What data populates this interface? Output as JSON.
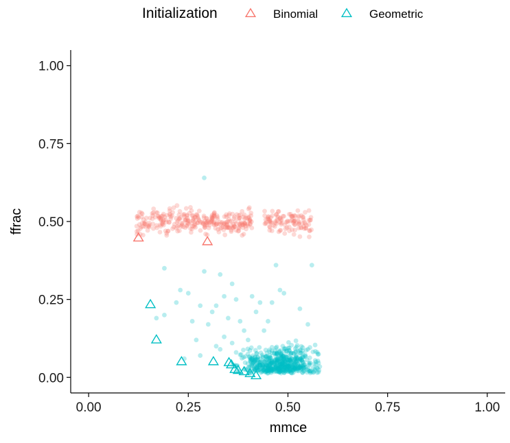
{
  "chart_data": {
    "type": "scatter",
    "xlabel": "mmce",
    "ylabel": "ffrac",
    "xlim": [
      -0.045,
      1.045
    ],
    "ylim": [
      -0.05,
      1.05
    ],
    "x_ticks": [
      0.0,
      0.25,
      0.5,
      0.75,
      1.0
    ],
    "x_tick_labels": [
      "0.00",
      "0.25",
      "0.50",
      "0.75",
      "1.00"
    ],
    "y_ticks": [
      0.0,
      0.25,
      0.5,
      0.75,
      1.0
    ],
    "y_tick_labels": [
      "0.00",
      "0.25",
      "0.50",
      "0.75",
      "1.00"
    ],
    "grid": false,
    "legend": {
      "title": "Initialization",
      "position": "top",
      "entries": [
        {
          "label": "Binomial",
          "color": "#F8766D",
          "shape": "triangle"
        },
        {
          "label": "Geometric",
          "color": "#00BFC4",
          "shape": "triangle"
        }
      ]
    },
    "series": [
      {
        "name": "Binomial",
        "color": "#F8766D",
        "cloud": {
          "description_clusters": [
            {
              "x_range": [
                0.12,
                0.41
              ],
              "y_center": 0.5,
              "y_spread": 0.035,
              "count": 300
            },
            {
              "x_range": [
                0.44,
                0.56
              ],
              "y_center": 0.5,
              "y_spread": 0.035,
              "count": 110
            }
          ]
        },
        "triangles": [
          {
            "x": 0.125,
            "y": 0.447
          },
          {
            "x": 0.298,
            "y": 0.435
          }
        ]
      },
      {
        "name": "Geometric",
        "color": "#00BFC4",
        "cloud_scattered": [
          [
            0.19,
            0.35
          ],
          [
            0.29,
            0.34
          ],
          [
            0.33,
            0.33
          ],
          [
            0.36,
            0.3
          ],
          [
            0.47,
            0.36
          ],
          [
            0.56,
            0.36
          ],
          [
            0.29,
            0.64
          ],
          [
            0.23,
            0.28
          ],
          [
            0.22,
            0.24
          ],
          [
            0.25,
            0.27
          ],
          [
            0.28,
            0.23
          ],
          [
            0.31,
            0.21
          ],
          [
            0.32,
            0.23
          ],
          [
            0.34,
            0.26
          ],
          [
            0.17,
            0.19
          ],
          [
            0.19,
            0.2
          ],
          [
            0.26,
            0.18
          ],
          [
            0.3,
            0.17
          ],
          [
            0.27,
            0.12
          ],
          [
            0.35,
            0.19
          ],
          [
            0.37,
            0.25
          ],
          [
            0.41,
            0.26
          ],
          [
            0.43,
            0.24
          ],
          [
            0.46,
            0.24
          ],
          [
            0.48,
            0.28
          ],
          [
            0.49,
            0.27
          ],
          [
            0.53,
            0.22
          ],
          [
            0.55,
            0.17
          ],
          [
            0.38,
            0.18
          ],
          [
            0.34,
            0.13
          ],
          [
            0.32,
            0.1
          ],
          [
            0.36,
            0.11
          ],
          [
            0.39,
            0.15
          ],
          [
            0.42,
            0.21
          ],
          [
            0.45,
            0.18
          ],
          [
            0.24,
            0.06
          ],
          [
            0.28,
            0.07
          ],
          [
            0.33,
            0.09
          ],
          [
            0.37,
            0.08
          ],
          [
            0.4,
            0.12
          ],
          [
            0.44,
            0.15
          ],
          [
            0.55,
            0.09
          ]
        ],
        "cloud": {
          "description_clusters": [
            {
              "x_range": [
                0.34,
                0.58
              ],
              "y_range": [
                0.0,
                0.12
              ],
              "count": 600,
              "dense_center": [
                0.48,
                0.03
              ]
            }
          ]
        },
        "triangles": [
          {
            "x": 0.155,
            "y": 0.233
          },
          {
            "x": 0.17,
            "y": 0.12
          },
          {
            "x": 0.233,
            "y": 0.05
          },
          {
            "x": 0.313,
            "y": 0.05
          },
          {
            "x": 0.352,
            "y": 0.047
          },
          {
            "x": 0.358,
            "y": 0.04
          },
          {
            "x": 0.367,
            "y": 0.025
          },
          {
            "x": 0.375,
            "y": 0.022
          },
          {
            "x": 0.39,
            "y": 0.018
          },
          {
            "x": 0.405,
            "y": 0.012
          },
          {
            "x": 0.42,
            "y": 0.005
          }
        ]
      }
    ]
  }
}
